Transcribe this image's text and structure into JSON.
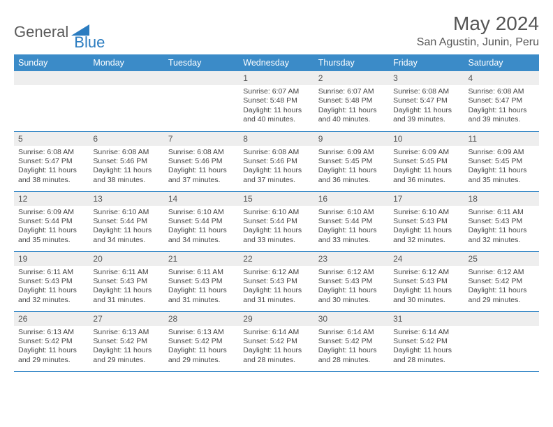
{
  "brand": {
    "part1": "General",
    "part2": "Blue"
  },
  "title": "May 2024",
  "location": "San Agustin, Junin, Peru",
  "colors": {
    "header_bg": "#3b8bc8",
    "header_text": "#ffffff",
    "row_border": "#3b8bc8",
    "daynum_bg": "#eeeeee",
    "body_text": "#444444",
    "brand_gray": "#5a5a5a",
    "brand_blue": "#2b7cc0"
  },
  "columns": [
    "Sunday",
    "Monday",
    "Tuesday",
    "Wednesday",
    "Thursday",
    "Friday",
    "Saturday"
  ],
  "weeks": [
    [
      null,
      null,
      null,
      {
        "n": "1",
        "sr": "6:07 AM",
        "ss": "5:48 PM",
        "dl": "11 hours and 40 minutes."
      },
      {
        "n": "2",
        "sr": "6:07 AM",
        "ss": "5:48 PM",
        "dl": "11 hours and 40 minutes."
      },
      {
        "n": "3",
        "sr": "6:08 AM",
        "ss": "5:47 PM",
        "dl": "11 hours and 39 minutes."
      },
      {
        "n": "4",
        "sr": "6:08 AM",
        "ss": "5:47 PM",
        "dl": "11 hours and 39 minutes."
      }
    ],
    [
      {
        "n": "5",
        "sr": "6:08 AM",
        "ss": "5:47 PM",
        "dl": "11 hours and 38 minutes."
      },
      {
        "n": "6",
        "sr": "6:08 AM",
        "ss": "5:46 PM",
        "dl": "11 hours and 38 minutes."
      },
      {
        "n": "7",
        "sr": "6:08 AM",
        "ss": "5:46 PM",
        "dl": "11 hours and 37 minutes."
      },
      {
        "n": "8",
        "sr": "6:08 AM",
        "ss": "5:46 PM",
        "dl": "11 hours and 37 minutes."
      },
      {
        "n": "9",
        "sr": "6:09 AM",
        "ss": "5:45 PM",
        "dl": "11 hours and 36 minutes."
      },
      {
        "n": "10",
        "sr": "6:09 AM",
        "ss": "5:45 PM",
        "dl": "11 hours and 36 minutes."
      },
      {
        "n": "11",
        "sr": "6:09 AM",
        "ss": "5:45 PM",
        "dl": "11 hours and 35 minutes."
      }
    ],
    [
      {
        "n": "12",
        "sr": "6:09 AM",
        "ss": "5:44 PM",
        "dl": "11 hours and 35 minutes."
      },
      {
        "n": "13",
        "sr": "6:10 AM",
        "ss": "5:44 PM",
        "dl": "11 hours and 34 minutes."
      },
      {
        "n": "14",
        "sr": "6:10 AM",
        "ss": "5:44 PM",
        "dl": "11 hours and 34 minutes."
      },
      {
        "n": "15",
        "sr": "6:10 AM",
        "ss": "5:44 PM",
        "dl": "11 hours and 33 minutes."
      },
      {
        "n": "16",
        "sr": "6:10 AM",
        "ss": "5:44 PM",
        "dl": "11 hours and 33 minutes."
      },
      {
        "n": "17",
        "sr": "6:10 AM",
        "ss": "5:43 PM",
        "dl": "11 hours and 32 minutes."
      },
      {
        "n": "18",
        "sr": "6:11 AM",
        "ss": "5:43 PM",
        "dl": "11 hours and 32 minutes."
      }
    ],
    [
      {
        "n": "19",
        "sr": "6:11 AM",
        "ss": "5:43 PM",
        "dl": "11 hours and 32 minutes."
      },
      {
        "n": "20",
        "sr": "6:11 AM",
        "ss": "5:43 PM",
        "dl": "11 hours and 31 minutes."
      },
      {
        "n": "21",
        "sr": "6:11 AM",
        "ss": "5:43 PM",
        "dl": "11 hours and 31 minutes."
      },
      {
        "n": "22",
        "sr": "6:12 AM",
        "ss": "5:43 PM",
        "dl": "11 hours and 31 minutes."
      },
      {
        "n": "23",
        "sr": "6:12 AM",
        "ss": "5:43 PM",
        "dl": "11 hours and 30 minutes."
      },
      {
        "n": "24",
        "sr": "6:12 AM",
        "ss": "5:43 PM",
        "dl": "11 hours and 30 minutes."
      },
      {
        "n": "25",
        "sr": "6:12 AM",
        "ss": "5:42 PM",
        "dl": "11 hours and 29 minutes."
      }
    ],
    [
      {
        "n": "26",
        "sr": "6:13 AM",
        "ss": "5:42 PM",
        "dl": "11 hours and 29 minutes."
      },
      {
        "n": "27",
        "sr": "6:13 AM",
        "ss": "5:42 PM",
        "dl": "11 hours and 29 minutes."
      },
      {
        "n": "28",
        "sr": "6:13 AM",
        "ss": "5:42 PM",
        "dl": "11 hours and 29 minutes."
      },
      {
        "n": "29",
        "sr": "6:14 AM",
        "ss": "5:42 PM",
        "dl": "11 hours and 28 minutes."
      },
      {
        "n": "30",
        "sr": "6:14 AM",
        "ss": "5:42 PM",
        "dl": "11 hours and 28 minutes."
      },
      {
        "n": "31",
        "sr": "6:14 AM",
        "ss": "5:42 PM",
        "dl": "11 hours and 28 minutes."
      },
      null
    ]
  ],
  "labels": {
    "sunrise": "Sunrise:",
    "sunset": "Sunset:",
    "daylight": "Daylight:"
  }
}
